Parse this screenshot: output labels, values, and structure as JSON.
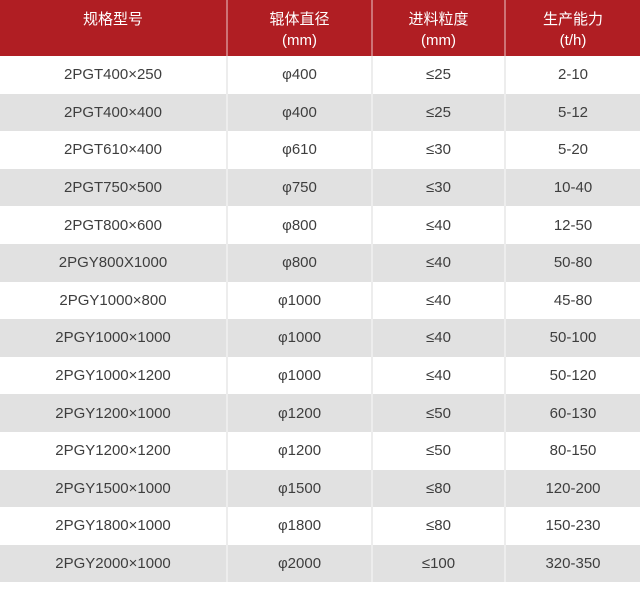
{
  "table": {
    "headers": [
      {
        "line1": "规格型号",
        "line2": ""
      },
      {
        "line1": "辊体直径",
        "line2": "(mm)"
      },
      {
        "line1": "进料粒度",
        "line2": "(mm)"
      },
      {
        "line1": "生产能力",
        "line2": "(t/h)"
      }
    ],
    "rows": [
      {
        "model": "2PGT400×250",
        "diameter": "φ400",
        "feed": "≤25",
        "capacity": "2-10"
      },
      {
        "model": "2PGT400×400",
        "diameter": "φ400",
        "feed": "≤25",
        "capacity": "5-12"
      },
      {
        "model": "2PGT610×400",
        "diameter": "φ610",
        "feed": "≤30",
        "capacity": "5-20"
      },
      {
        "model": "2PGT750×500",
        "diameter": "φ750",
        "feed": "≤30",
        "capacity": "10-40"
      },
      {
        "model": "2PGT800×600",
        "diameter": "φ800",
        "feed": "≤40",
        "capacity": "12-50"
      },
      {
        "model": "2PGY800X1000",
        "diameter": "φ800",
        "feed": "≤40",
        "capacity": "50-80"
      },
      {
        "model": "2PGY1000×800",
        "diameter": "φ1000",
        "feed": "≤40",
        "capacity": "45-80"
      },
      {
        "model": "2PGY1000×1000",
        "diameter": "φ1000",
        "feed": "≤40",
        "capacity": "50-100"
      },
      {
        "model": "2PGY1000×1200",
        "diameter": "φ1000",
        "feed": "≤40",
        "capacity": "50-120"
      },
      {
        "model": "2PGY1200×1000",
        "diameter": "φ1200",
        "feed": "≤50",
        "capacity": "60-130"
      },
      {
        "model": "2PGY1200×1200",
        "diameter": "φ1200",
        "feed": "≤50",
        "capacity": "80-150"
      },
      {
        "model": "2PGY1500×1000",
        "diameter": "φ1500",
        "feed": "≤80",
        "capacity": "120-200"
      },
      {
        "model": "2PGY1800×1000",
        "diameter": "φ1800",
        "feed": "≤80",
        "capacity": "150-230"
      },
      {
        "model": "2PGY2000×1000",
        "diameter": "φ2000",
        "feed": "≤100",
        "capacity": "320-350"
      }
    ],
    "colors": {
      "header_bg": "#b01e23",
      "header_text": "#ffffff",
      "header_divider": "rgba(255,255,255,0.38)",
      "row_bg": "#ffffff",
      "row_alt_bg": "#e1e1e1",
      "body_text": "#3e3e3e",
      "body_divider": "#ededed"
    }
  },
  "chart_data": {
    "type": "table",
    "columns": [
      "规格型号",
      "辊体直径 (mm)",
      "进料粒度 (mm)",
      "生产能力 (t/h)"
    ],
    "rows": [
      [
        "2PGT400×250",
        "φ400",
        "≤25",
        "2-10"
      ],
      [
        "2PGT400×400",
        "φ400",
        "≤25",
        "5-12"
      ],
      [
        "2PGT610×400",
        "φ610",
        "≤30",
        "5-20"
      ],
      [
        "2PGT750×500",
        "φ750",
        "≤30",
        "10-40"
      ],
      [
        "2PGT800×600",
        "φ800",
        "≤40",
        "12-50"
      ],
      [
        "2PGY800X1000",
        "φ800",
        "≤40",
        "50-80"
      ],
      [
        "2PGY1000×800",
        "φ1000",
        "≤40",
        "45-80"
      ],
      [
        "2PGY1000×1000",
        "φ1000",
        "≤40",
        "50-100"
      ],
      [
        "2PGY1000×1200",
        "φ1000",
        "≤40",
        "50-120"
      ],
      [
        "2PGY1200×1000",
        "φ1200",
        "≤50",
        "60-130"
      ],
      [
        "2PGY1200×1200",
        "φ1200",
        "≤50",
        "80-150"
      ],
      [
        "2PGY1500×1000",
        "φ1500",
        "≤80",
        "120-200"
      ],
      [
        "2PGY1800×1000",
        "φ1800",
        "≤80",
        "150-230"
      ],
      [
        "2PGY2000×1000",
        "φ2000",
        "≤100",
        "320-350"
      ]
    ]
  }
}
